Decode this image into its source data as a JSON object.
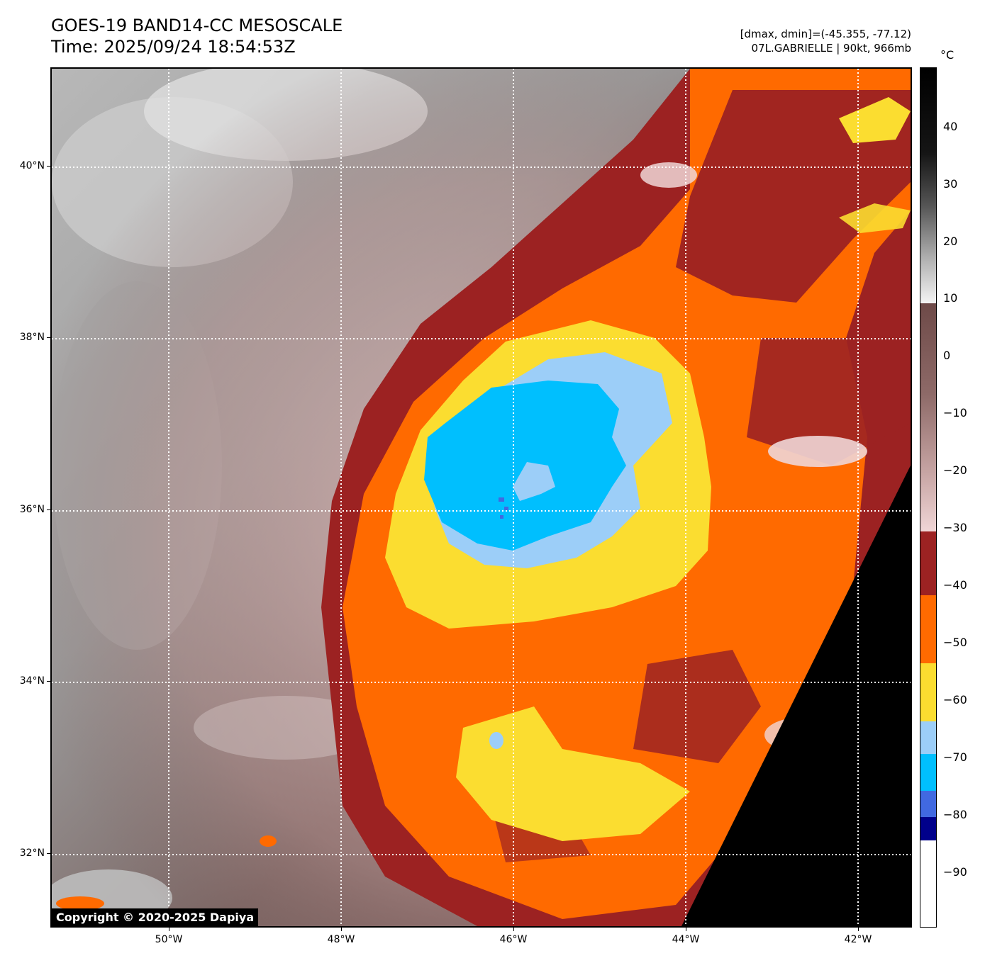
{
  "header": {
    "title": "GOES-19 BAND14-CC MESOSCALE",
    "time": "Time: 2025/09/24 18:54:53Z",
    "range_info": "[dmax, dmin]=(-45.355, -77.12)",
    "storm_info": "07L.GABRIELLE | 90kt, 966mb"
  },
  "map": {
    "lat_labels": [
      "40°N",
      "38°N",
      "36°N",
      "34°N",
      "32°N"
    ],
    "lon_labels": [
      "50°W",
      "48°W",
      "46°W",
      "44°W",
      "42°W"
    ],
    "storm_center": {
      "lat": 35.9,
      "lon": 46.0
    }
  },
  "colorbar": {
    "unit": "°C",
    "labels": [
      "40",
      "30",
      "20",
      "10",
      "0",
      "−10",
      "−20",
      "−30",
      "−40",
      "−50",
      "−60",
      "−70",
      "−80",
      "−90"
    ],
    "colors": {
      "very_cold_black": "#000000",
      "cold_white": "#f4f4f4",
      "warm_brown": "#6e4a48",
      "pink": "#f0d6d6",
      "dark_red": "#9c2222",
      "orange": "#ff6a00",
      "yellow": "#fbdd30",
      "light_blue": "#9ccef8",
      "cyan": "#00bffe",
      "royal_blue": "#4169e1",
      "navy": "#00008b",
      "bottom_white": "#ffffff"
    }
  },
  "copyright": "Copyright © 2020-2025 Dapiya"
}
